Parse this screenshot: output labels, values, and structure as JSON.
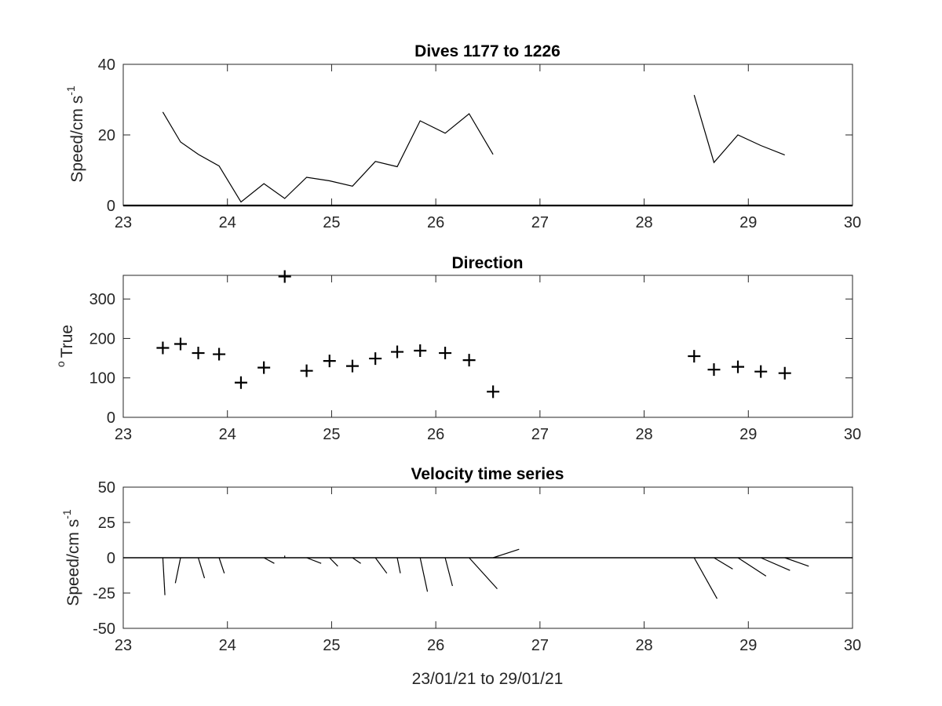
{
  "chart_data": [
    {
      "type": "line",
      "title": "Dives 1177 to 1226",
      "ylabel": "Speed/cm s",
      "ylabel_sup": "-1",
      "xlim": [
        23,
        30
      ],
      "ylim": [
        0,
        40
      ],
      "xticks": [
        "23",
        "24",
        "25",
        "26",
        "27",
        "28",
        "29",
        "30"
      ],
      "yticks": [
        "0",
        "20",
        "40"
      ],
      "series": [
        {
          "segments": [
            [
              [
                23.38,
                26.5
              ],
              [
                23.55,
                18
              ],
              [
                23.72,
                14.5
              ],
              [
                23.92,
                11.2
              ],
              [
                24.13,
                1
              ],
              [
                24.35,
                6.2
              ],
              [
                24.55,
                2
              ],
              [
                24.76,
                8
              ],
              [
                24.98,
                7
              ],
              [
                25.2,
                5.5
              ],
              [
                25.42,
                12.5
              ],
              [
                25.63,
                11
              ],
              [
                25.85,
                24
              ],
              [
                26.09,
                20.5
              ],
              [
                26.32,
                26
              ],
              [
                26.55,
                14.5
              ]
            ],
            [
              [
                28.48,
                31.3
              ],
              [
                28.67,
                12.2
              ],
              [
                28.9,
                20
              ],
              [
                29.12,
                17
              ],
              [
                29.35,
                14.3
              ]
            ]
          ]
        }
      ],
      "zero_line": true
    },
    {
      "type": "scatter",
      "title": "Direction",
      "ylabel": "True",
      "ylabel_prefix": "o",
      "xlim": [
        23,
        30
      ],
      "ylim": [
        0,
        360
      ],
      "xticks": [
        "23",
        "24",
        "25",
        "26",
        "27",
        "28",
        "29",
        "30"
      ],
      "yticks": [
        "0",
        "100",
        "200",
        "300"
      ],
      "marker": "+",
      "x": [
        23.38,
        23.55,
        23.72,
        23.92,
        24.13,
        24.35,
        24.55,
        24.76,
        24.98,
        25.2,
        25.42,
        25.63,
        25.85,
        26.09,
        26.32,
        26.55,
        28.48,
        28.67,
        28.9,
        29.12,
        29.35
      ],
      "y": [
        176,
        186,
        163,
        160,
        88,
        126,
        357,
        118,
        143,
        130,
        149,
        166,
        169,
        163,
        145,
        65,
        155,
        121,
        128,
        116,
        112
      ]
    },
    {
      "type": "line",
      "title": "Velocity time series",
      "ylabel": "Speed/cm s",
      "ylabel_sup": "-1",
      "xlabel": "23/01/21 to 29/01/21",
      "xlim": [
        23,
        30
      ],
      "ylim": [
        -50,
        50
      ],
      "xticks": [
        "23",
        "24",
        "25",
        "26",
        "27",
        "28",
        "29",
        "30"
      ],
      "yticks": [
        "-50",
        "-25",
        "0",
        "25",
        "50"
      ],
      "zero_line": true,
      "sticks": [
        {
          "x0": 23.38,
          "x1": 23.4,
          "y1": -26.5
        },
        {
          "x0": 23.55,
          "x1": 23.5,
          "y1": -18
        },
        {
          "x0": 23.72,
          "x1": 23.78,
          "y1": -14.5
        },
        {
          "x0": 23.92,
          "x1": 23.97,
          "y1": -11
        },
        {
          "x0": 24.13,
          "x1": 24.13,
          "y1": 0
        },
        {
          "x0": 24.35,
          "x1": 24.45,
          "y1": -4
        },
        {
          "x0": 24.55,
          "x1": 24.55,
          "y1": 1.5
        },
        {
          "x0": 24.76,
          "x1": 24.9,
          "y1": -4
        },
        {
          "x0": 24.98,
          "x1": 25.06,
          "y1": -6
        },
        {
          "x0": 25.2,
          "x1": 25.28,
          "y1": -4
        },
        {
          "x0": 25.42,
          "x1": 25.53,
          "y1": -11
        },
        {
          "x0": 25.63,
          "x1": 25.66,
          "y1": -11
        },
        {
          "x0": 25.85,
          "x1": 25.92,
          "y1": -24
        },
        {
          "x0": 26.09,
          "x1": 26.16,
          "y1": -20
        },
        {
          "x0": 26.32,
          "x1": 26.59,
          "y1": -22
        },
        {
          "x0": 26.55,
          "x1": 26.8,
          "y1": 6
        },
        {
          "x0": 28.48,
          "x1": 28.7,
          "y1": -29
        },
        {
          "x0": 28.67,
          "x1": 28.85,
          "y1": -8
        },
        {
          "x0": 28.9,
          "x1": 29.17,
          "y1": -13
        },
        {
          "x0": 29.12,
          "x1": 29.4,
          "y1": -9
        },
        {
          "x0": 29.35,
          "x1": 29.58,
          "y1": -6
        }
      ]
    }
  ]
}
